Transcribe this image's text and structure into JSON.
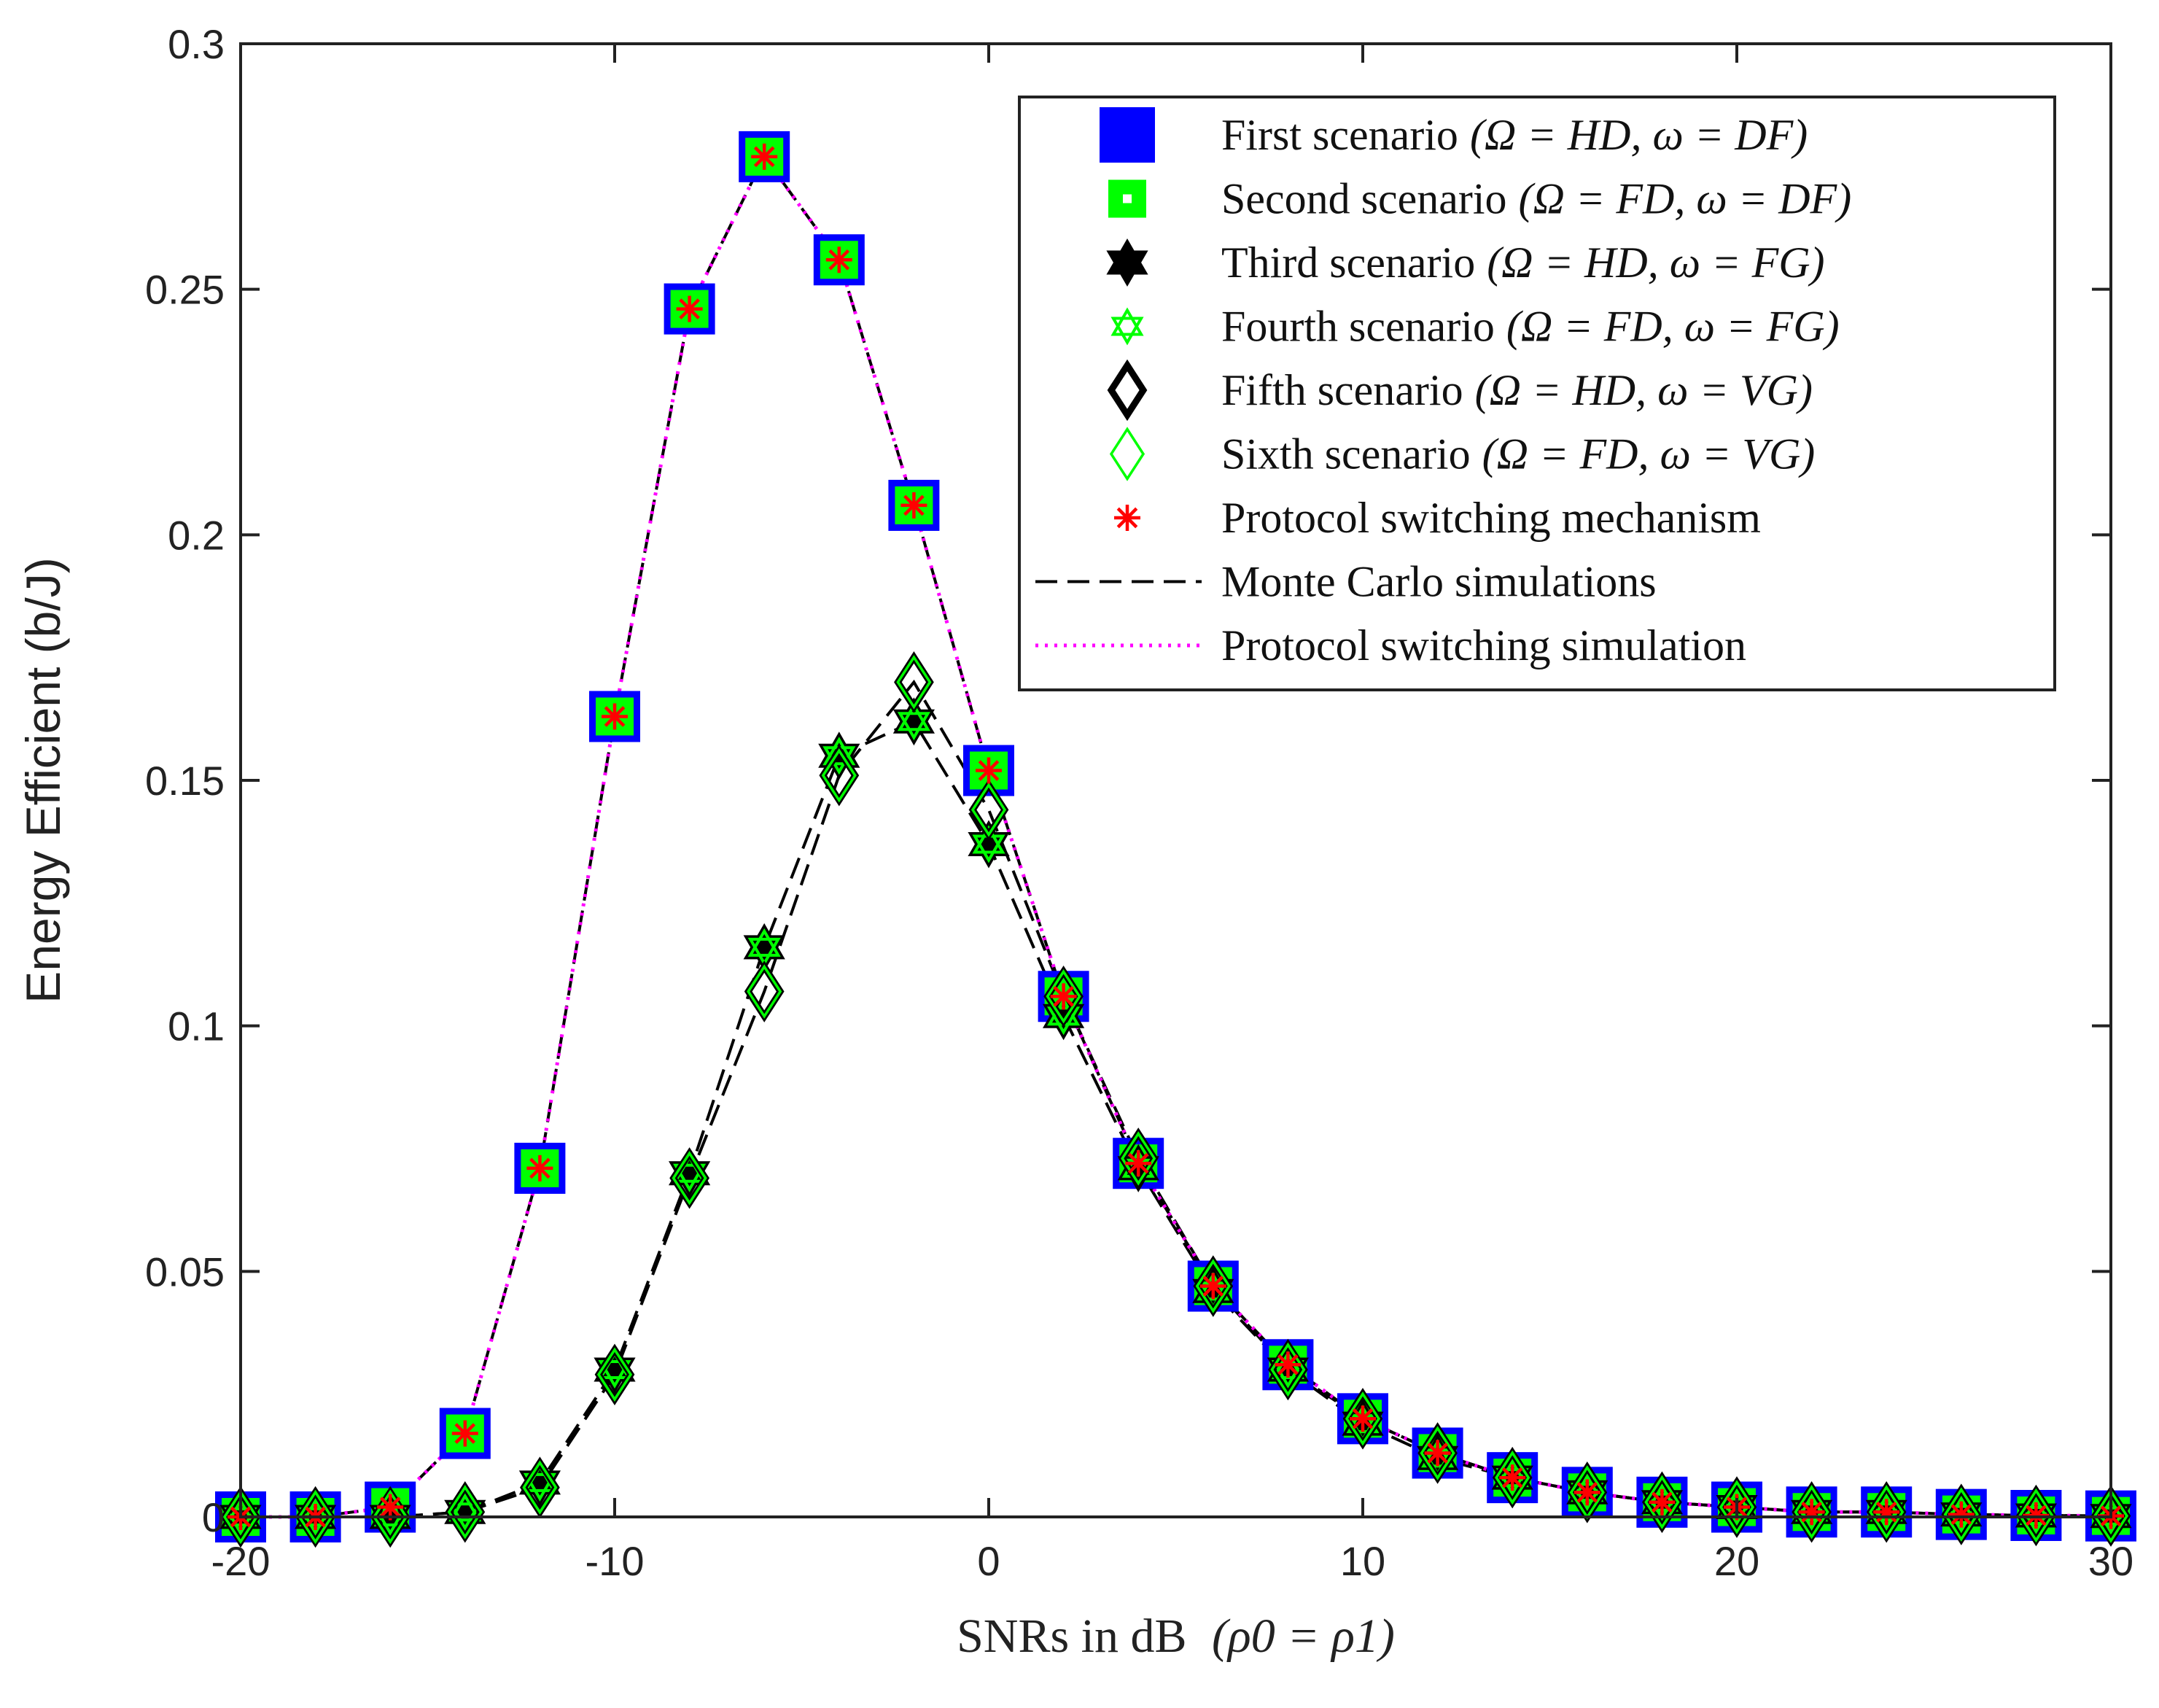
{
  "chart_data": {
    "type": "line",
    "title": "",
    "xlabel": "SNRs in dB",
    "xlabel_math": "(ρ0 = ρ1)",
    "ylabel": "Energy Efficient (b/J)",
    "xlim": [
      -20,
      30
    ],
    "ylim": [
      0,
      0.3
    ],
    "xticks": [
      -20,
      -10,
      0,
      10,
      20,
      30
    ],
    "xtick_labels": [
      "-20",
      "-10",
      "0",
      "10",
      "20",
      "30"
    ],
    "yticks": [
      0,
      0.05,
      0.1,
      0.15,
      0.2,
      0.25,
      0.3
    ],
    "ytick_labels": [
      "0",
      "0.05",
      "0.1",
      "0.15",
      "0.2",
      "0.25",
      "0.3"
    ],
    "legend_position": "top-right",
    "x": [
      -20,
      -18,
      -16,
      -14,
      -12,
      -10,
      -8,
      -6,
      -4,
      -2,
      0,
      2,
      4,
      6,
      8,
      10,
      12,
      14,
      16,
      18,
      20,
      22,
      24,
      26,
      28,
      30
    ],
    "series": [
      {
        "name": "First scenario",
        "math": "(Ω = HD, ω = DF)",
        "marker": "square-filled",
        "color": "#0000ff",
        "values": [
          0,
          0,
          0.002,
          0.017,
          0.071,
          0.163,
          0.246,
          0.277,
          0.256,
          0.206,
          0.152,
          0.106,
          0.072,
          0.047,
          0.031,
          0.02,
          0.013,
          0.008,
          0.005,
          0.003,
          0.002,
          0.001,
          0.001,
          0.0005,
          0.0003,
          0.0002
        ]
      },
      {
        "name": "Second scenario",
        "math": "(Ω = FD, ω = DF)",
        "marker": "square-green",
        "color": "#00ff00",
        "values": [
          0,
          0,
          0.002,
          0.017,
          0.071,
          0.163,
          0.246,
          0.277,
          0.256,
          0.206,
          0.152,
          0.106,
          0.072,
          0.047,
          0.031,
          0.02,
          0.013,
          0.008,
          0.005,
          0.003,
          0.002,
          0.001,
          0.001,
          0.0005,
          0.0003,
          0.0002
        ]
      },
      {
        "name": "Third scenario",
        "math": "(Ω = HD, ω = FG)",
        "marker": "hexagram-black",
        "color": "#000000",
        "values": [
          0,
          0,
          0,
          0.001,
          0.007,
          0.03,
          0.07,
          0.116,
          0.155,
          0.162,
          0.137,
          0.102,
          0.071,
          0.046,
          0.03,
          0.019,
          0.012,
          0.008,
          0.005,
          0.003,
          0.002,
          0.001,
          0.001,
          0.0005,
          0.0003,
          0.0002
        ]
      },
      {
        "name": "Fourth scenario",
        "math": "(Ω = FD, ω = FG)",
        "marker": "hexagram-green",
        "color": "#00ff00",
        "values": [
          0,
          0,
          0,
          0.001,
          0.007,
          0.03,
          0.07,
          0.116,
          0.155,
          0.162,
          0.137,
          0.102,
          0.071,
          0.046,
          0.03,
          0.019,
          0.012,
          0.008,
          0.005,
          0.003,
          0.002,
          0.001,
          0.001,
          0.0005,
          0.0003,
          0.0002
        ]
      },
      {
        "name": "Fifth scenario",
        "math": "(Ω = HD, ω = VG)",
        "marker": "diamond-black",
        "color": "#000000",
        "values": [
          0,
          0,
          0,
          0.001,
          0.006,
          0.029,
          0.069,
          0.107,
          0.151,
          0.17,
          0.144,
          0.106,
          0.073,
          0.047,
          0.03,
          0.02,
          0.013,
          0.008,
          0.005,
          0.003,
          0.002,
          0.001,
          0.001,
          0.0005,
          0.0003,
          0.0002
        ]
      },
      {
        "name": "Sixth scenario",
        "math": "(Ω = FD, ω = VG)",
        "marker": "diamond-green",
        "color": "#00ff00",
        "values": [
          0,
          0,
          0,
          0.001,
          0.006,
          0.029,
          0.069,
          0.107,
          0.151,
          0.17,
          0.144,
          0.106,
          0.073,
          0.047,
          0.03,
          0.02,
          0.013,
          0.008,
          0.005,
          0.003,
          0.002,
          0.001,
          0.001,
          0.0005,
          0.0003,
          0.0002
        ]
      },
      {
        "name": "Protocol switching mechanism",
        "math": "",
        "marker": "asterisk-red",
        "color": "#ff0000",
        "values": [
          0,
          0,
          0.002,
          0.017,
          0.071,
          0.163,
          0.246,
          0.277,
          0.256,
          0.206,
          0.152,
          0.106,
          0.072,
          0.047,
          0.031,
          0.02,
          0.013,
          0.008,
          0.005,
          0.003,
          0.002,
          0.001,
          0.001,
          0.0005,
          0.0003,
          0.0002
        ]
      }
    ],
    "lines": [
      {
        "name": "Monte Carlo simulations",
        "style": "dashed",
        "color": "#000000",
        "curves": [
          "First scenario",
          "Third scenario",
          "Fifth scenario"
        ]
      },
      {
        "name": "Protocol switching simulation",
        "style": "dotted",
        "color": "#ff00ff",
        "curves": [
          "Protocol switching mechanism"
        ]
      }
    ]
  }
}
